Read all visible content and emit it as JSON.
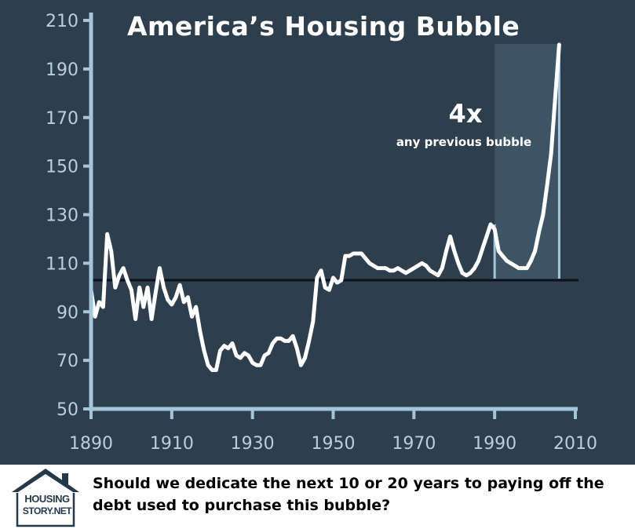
{
  "chart_data": {
    "type": "line",
    "title": "America’s Housing Bubble",
    "xlabel": "",
    "ylabel": "",
    "xlim": [
      1890,
      2010
    ],
    "ylim": [
      50,
      210
    ],
    "x_ticks": [
      "1890",
      "1910",
      "1930",
      "1950",
      "1970",
      "1990",
      "2010"
    ],
    "y_ticks": [
      "50",
      "70",
      "90",
      "110",
      "130",
      "150",
      "170",
      "190",
      "210"
    ],
    "grid": false,
    "reference_line": 103,
    "highlight_region": [
      1990,
      2006
    ],
    "series": [
      {
        "x": [
          1890,
          1891,
          1892,
          1893,
          1894,
          1895,
          1896,
          1897,
          1898,
          1899,
          1900,
          1901,
          1902,
          1903,
          1904,
          1905,
          1906,
          1907,
          1908,
          1909,
          1910,
          1911,
          1912,
          1913,
          1914,
          1915,
          1916,
          1917,
          1918,
          1919,
          1920,
          1921,
          1922,
          1923,
          1924,
          1925,
          1926,
          1927,
          1928,
          1929,
          1930,
          1931,
          1932,
          1933,
          1934,
          1935,
          1936,
          1937,
          1938,
          1939,
          1940,
          1941,
          1942,
          1943,
          1944,
          1945,
          1946,
          1947,
          1948,
          1949,
          1950,
          1951,
          1952,
          1953,
          1954,
          1955,
          1956,
          1957,
          1958,
          1959,
          1960,
          1961,
          1962,
          1963,
          1964,
          1965,
          1966,
          1967,
          1968,
          1969,
          1970,
          1971,
          1972,
          1973,
          1974,
          1975,
          1976,
          1977,
          1978,
          1979,
          1980,
          1981,
          1982,
          1983,
          1984,
          1985,
          1986,
          1987,
          1988,
          1989,
          1990,
          1991,
          1992,
          1993,
          1994,
          1995,
          1996,
          1997,
          1998,
          1999,
          2000,
          2001,
          2002,
          2003,
          2004,
          2005,
          2006
        ],
        "values": [
          99,
          88,
          94,
          92,
          122,
          115,
          100,
          105,
          108,
          103,
          99,
          87,
          100,
          92,
          100,
          87,
          98,
          108,
          100,
          95,
          93,
          96,
          101,
          94,
          96,
          88,
          92,
          82,
          74,
          68,
          66,
          66,
          74,
          76,
          75,
          77,
          72,
          71,
          73,
          72,
          69,
          68,
          68,
          72,
          73,
          77,
          79,
          79,
          78,
          78,
          80,
          75,
          68,
          71,
          78,
          86,
          104,
          107,
          100,
          99,
          104,
          102,
          103,
          113,
          113,
          114,
          114,
          114,
          112,
          110,
          109,
          108,
          108,
          108,
          107,
          107,
          108,
          107,
          106,
          107,
          108,
          109,
          110,
          109,
          107,
          106,
          105,
          108,
          115,
          121,
          115,
          110,
          106,
          105,
          106,
          108,
          111,
          116,
          121,
          126,
          124,
          115,
          113,
          111,
          110,
          109,
          108,
          108,
          108,
          111,
          115,
          123,
          130,
          142,
          155,
          178,
          200
        ]
      }
    ],
    "annotations": {
      "multiplier": "4x",
      "multiplier_caption": "any previous bubble"
    },
    "colors": {
      "background": "#2d3e4d",
      "axis": "#a4c6db",
      "tick_label": "#b7d0e0",
      "line": "#ffffff",
      "reference_line": "#0d1118",
      "highlight": "#3d5464",
      "highlight_edge": "#a4c6db"
    }
  },
  "footer": {
    "logo_line1": "HOUSING",
    "logo_line2": "STORY.NET",
    "question": "Should we dedicate the next 10 or 20 years to paying off the debt used to purchase this bubble?"
  }
}
